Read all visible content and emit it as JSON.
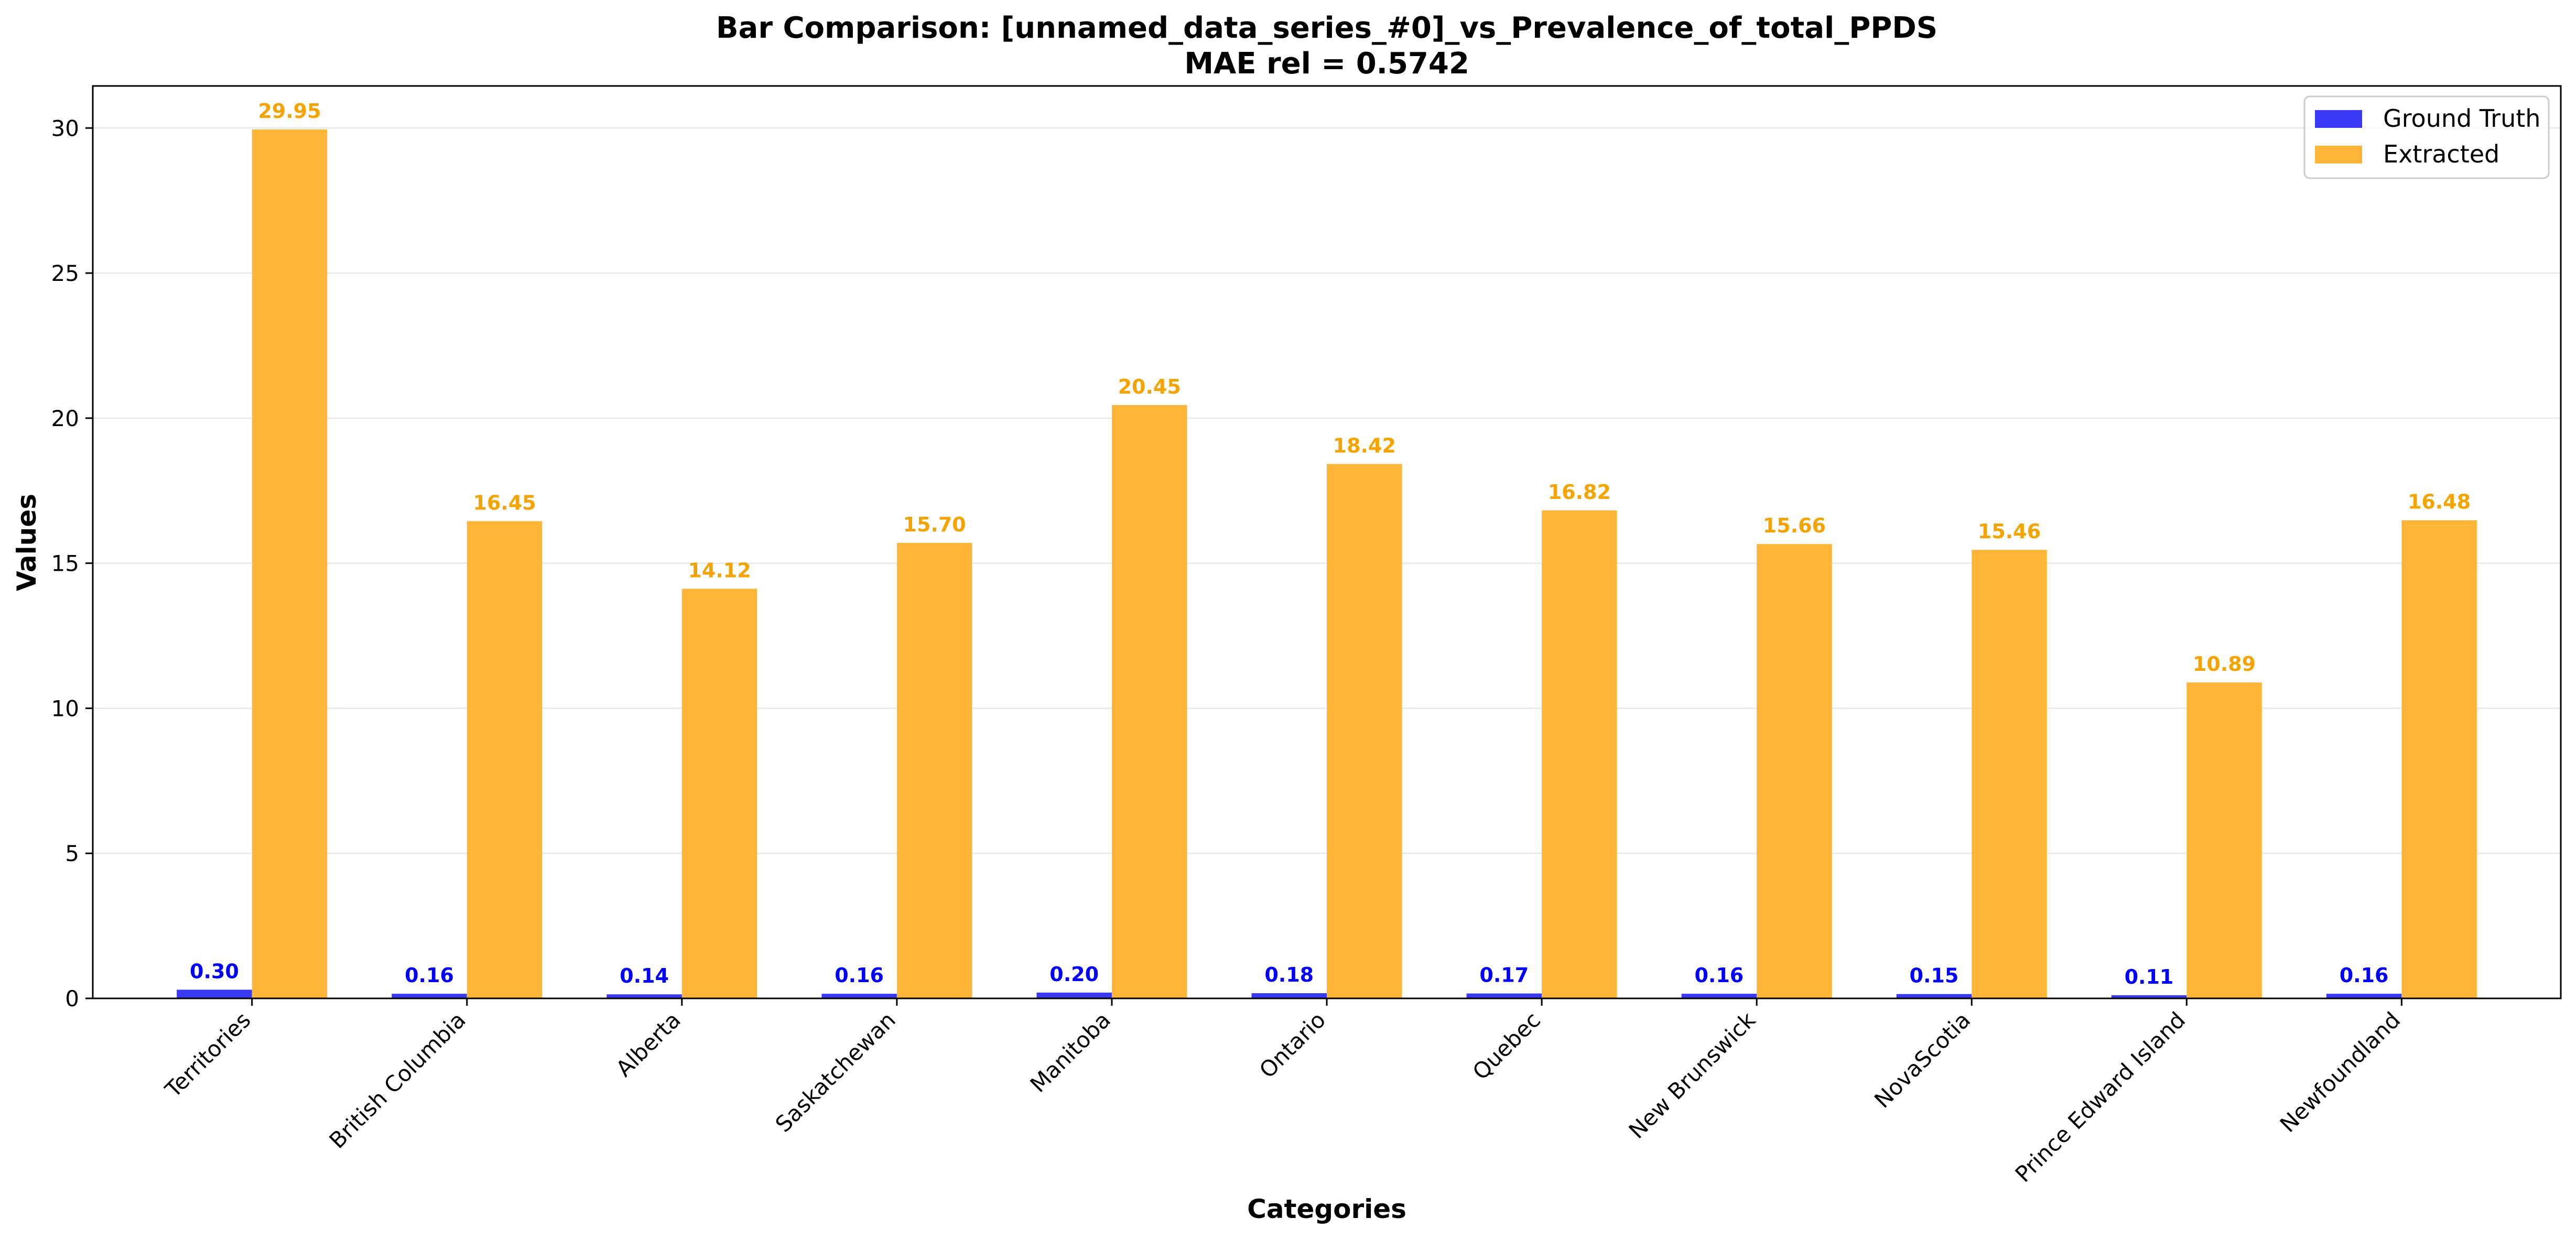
{
  "chart_data": {
    "type": "bar",
    "title": "Bar Comparison: [unnamed_data_series_#0]_vs_Prevalence_of_total_PPDS",
    "subtitle": "MAE rel = 0.5742",
    "xlabel": "Categories",
    "ylabel": "Values",
    "ylim": [
      0,
      31.45
    ],
    "yticks": [
      0,
      5,
      10,
      15,
      20,
      25,
      30
    ],
    "grid": "horizontal",
    "legend_position": "top-right",
    "categories": [
      "Territories",
      "British Columbia",
      "Alberta",
      "Saskatchewan",
      "Manitoba",
      "Ontario",
      "Quebec",
      "New Brunswick",
      "NovaScotia",
      "Prince Edward Island",
      "Newfoundland"
    ],
    "series": [
      {
        "name": "Ground Truth",
        "color": "#3a3af5",
        "label_color": "#0000ff",
        "values": [
          0.3,
          0.16,
          0.14,
          0.16,
          0.2,
          0.18,
          0.17,
          0.16,
          0.15,
          0.11,
          0.16
        ],
        "labels": [
          "0.30",
          "0.16",
          "0.14",
          "0.16",
          "0.20",
          "0.18",
          "0.17",
          "0.16",
          "0.15",
          "0.11",
          "0.16"
        ]
      },
      {
        "name": "Extracted",
        "color": "#ffb638",
        "label_color": "#f5a300",
        "values": [
          29.95,
          16.45,
          14.12,
          15.7,
          20.45,
          18.42,
          16.82,
          15.66,
          15.46,
          10.89,
          16.48
        ],
        "labels": [
          "29.95",
          "16.45",
          "14.12",
          "15.70",
          "20.45",
          "18.42",
          "16.82",
          "15.66",
          "15.46",
          "10.89",
          "16.48"
        ]
      }
    ]
  }
}
